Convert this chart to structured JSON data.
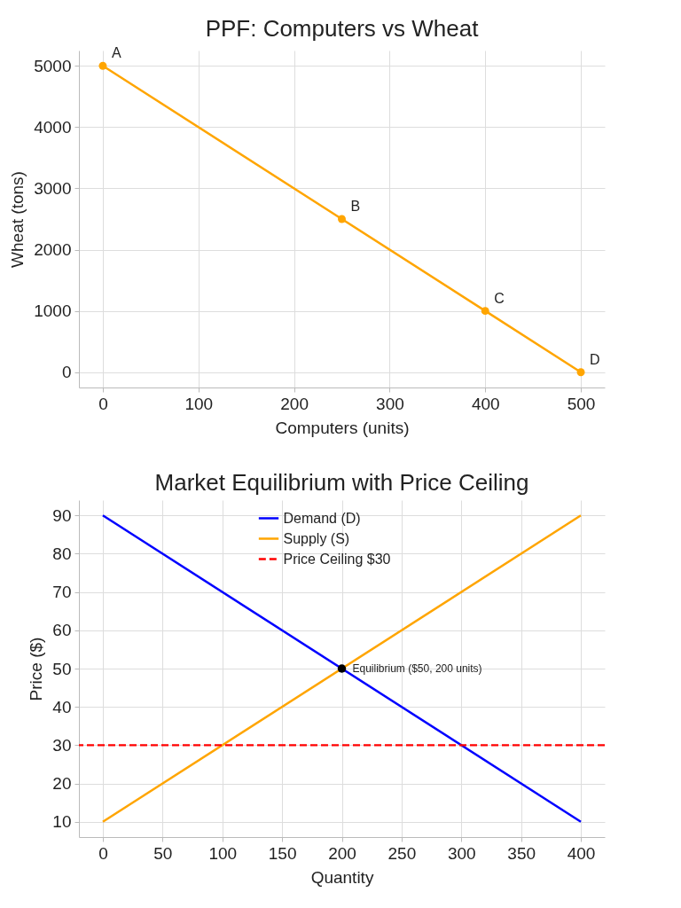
{
  "chart_data": [
    {
      "type": "line",
      "title": "PPF: Computers vs Wheat",
      "xlabel": "Computers (units)",
      "ylabel": "Wheat (tons)",
      "x": [
        0,
        250,
        400,
        500
      ],
      "series": [
        {
          "color": "#ffa500",
          "values": [
            5000,
            2500,
            1000,
            0
          ]
        }
      ],
      "xlim": [
        -25,
        525
      ],
      "ylim": [
        -250,
        5250
      ],
      "xticks": [
        0,
        100,
        200,
        300,
        400,
        500
      ],
      "yticks": [
        0,
        1000,
        2000,
        3000,
        4000,
        5000
      ],
      "grid": true,
      "marker": "circle",
      "annotations": [
        {
          "text": "A",
          "x": 0,
          "y": 5000
        },
        {
          "text": "B",
          "x": 250,
          "y": 2500
        },
        {
          "text": "C",
          "x": 400,
          "y": 1000
        },
        {
          "text": "D",
          "x": 500,
          "y": 0
        }
      ]
    },
    {
      "type": "line",
      "title": "Market Equilibrium with Price Ceiling",
      "xlabel": "Quantity",
      "ylabel": "Price ($)",
      "series": [
        {
          "name": "Demand (D)",
          "color": "#0000ff",
          "x": [
            0,
            400
          ],
          "values": [
            90,
            10
          ]
        },
        {
          "name": "Supply (S)",
          "color": "#ffa500",
          "x": [
            0,
            400
          ],
          "values": [
            10,
            90
          ]
        },
        {
          "type": "scatter",
          "color": "#000000",
          "x": [
            200
          ],
          "values": [
            50
          ]
        }
      ],
      "ref_lines": [
        {
          "axis": "y",
          "value": 30,
          "label": "Price Ceiling $30",
          "color": "#ff0000",
          "line_style": "dashed"
        }
      ],
      "xlim": [
        -20,
        420
      ],
      "ylim": [
        6,
        94
      ],
      "xticks": [
        0,
        50,
        100,
        150,
        200,
        250,
        300,
        350,
        400
      ],
      "yticks": [
        10,
        20,
        30,
        40,
        50,
        60,
        70,
        80,
        90
      ],
      "grid": true,
      "legend": "top",
      "annotations": [
        {
          "text": "Equilibrium ($50, 200 units)",
          "x": 200,
          "y": 50
        }
      ]
    }
  ]
}
